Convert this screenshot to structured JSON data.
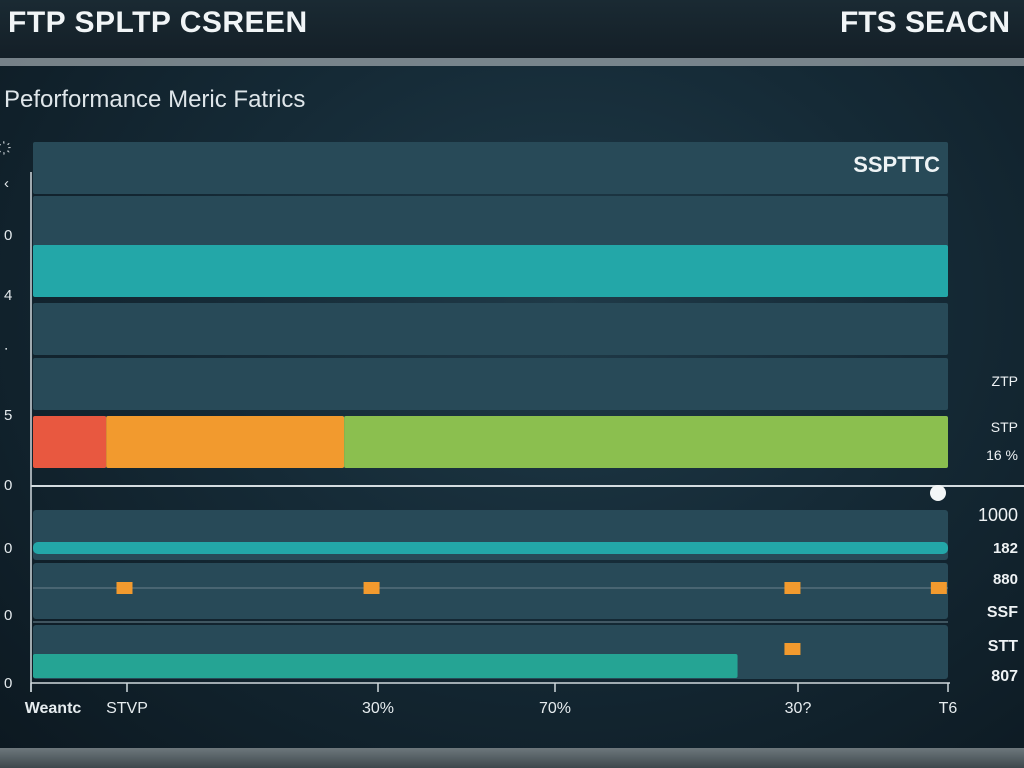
{
  "header": {
    "title": "FTP SPLTP CSREEN",
    "search_label": "FTS SEACN"
  },
  "panel": {
    "title": "Peforformance Meric Fatrics"
  },
  "chart_data": {
    "type": "bar",
    "panel_label": "SSPTTC",
    "left_ticks": [
      "҉",
      "‹",
      "0",
      "4",
      "∙",
      "5",
      "0",
      "0",
      "0",
      "0"
    ],
    "right_labels": [
      "ZTP",
      "STP",
      "16 %",
      "1000",
      "182",
      "880",
      "SSF",
      "STT",
      "807"
    ],
    "x_tick_labels": [
      "Weantc",
      "STVP",
      "30%",
      "70%",
      "30?",
      "T6"
    ],
    "xlim": [
      0,
      100
    ],
    "upper_rows": [
      {
        "row": 0,
        "segments": [
          {
            "start": 0,
            "value": 100,
            "color": "#284a58"
          }
        ]
      },
      {
        "row": 1,
        "segments": [
          {
            "start": 0,
            "value": 100,
            "color": "#284a58"
          }
        ]
      },
      {
        "row": 2,
        "segments": [
          {
            "start": 0,
            "value": 100,
            "color": "#23a7a8"
          }
        ]
      },
      {
        "row": 3,
        "segments": [
          {
            "start": 0,
            "value": 100,
            "color": "#284a58"
          }
        ]
      },
      {
        "row": 4,
        "segments": [
          {
            "start": 0,
            "value": 100,
            "color": "#284a58"
          }
        ]
      },
      {
        "row": 5,
        "segments": [
          {
            "start": 0,
            "value": 8,
            "color": "#e85840"
          },
          {
            "start": 8,
            "value": 26,
            "color": "#f29a2e"
          },
          {
            "start": 34,
            "value": 66,
            "color": "#8bbf4f"
          }
        ]
      }
    ],
    "lower_rows": [
      {
        "row": 0,
        "segments": [
          {
            "start": 0,
            "value": 100,
            "color": "#23a7a8"
          }
        ]
      },
      {
        "row": 1,
        "segments": []
      },
      {
        "row": 2,
        "segments": [
          {
            "start": 0,
            "value": 77,
            "color": "#25a494"
          }
        ]
      }
    ],
    "markers": [
      {
        "x": 10,
        "row": 1
      },
      {
        "x": 37,
        "row": 1
      },
      {
        "x": 83,
        "row": 1
      },
      {
        "x": 99,
        "row": 1
      },
      {
        "x": 83,
        "row": 2
      }
    ],
    "slider_value": 100,
    "colors": {
      "row_bg": "#284a58",
      "teal": "#23a7a8",
      "red": "#e85840",
      "orange": "#f29a2e",
      "green": "#8bbf4f",
      "marker": "#f29a2e"
    }
  }
}
